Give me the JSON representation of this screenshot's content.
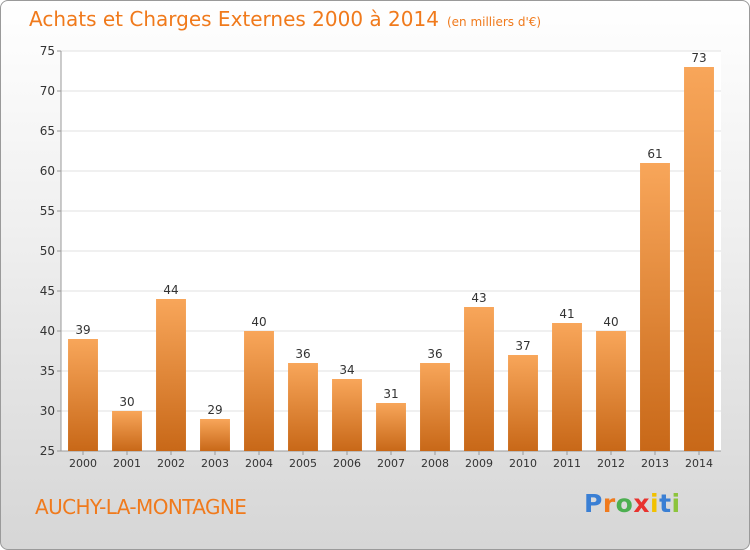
{
  "title": "Achats et Charges Externes 2000 à 2014",
  "subtitle": "(en milliers d'€)",
  "commune": "AUCHY-LA-MONTAGNE",
  "brand": {
    "text": "Proxiti",
    "letter_colors": [
      "#3a7fd4",
      "#f07a1c",
      "#4caf50",
      "#e8322e",
      "#f2c100",
      "#3a7fd4",
      "#8cc43c"
    ]
  },
  "colors": {
    "accent": "#f07a1c",
    "bar_light": "#f8a65a",
    "bar_dark": "#c86818",
    "grid": "#e2e2e2",
    "axis": "#999999",
    "text": "#333333"
  },
  "chart_data": {
    "type": "bar",
    "categories": [
      "2000",
      "2001",
      "2002",
      "2003",
      "2004",
      "2005",
      "2006",
      "2007",
      "2008",
      "2009",
      "2010",
      "2011",
      "2012",
      "2013",
      "2014"
    ],
    "values": [
      39,
      30,
      44,
      29,
      40,
      36,
      34,
      31,
      36,
      43,
      37,
      41,
      40,
      61,
      73
    ],
    "ylim": [
      25,
      75
    ],
    "yticks": [
      25,
      30,
      35,
      40,
      45,
      50,
      55,
      60,
      65,
      70,
      75
    ],
    "grid": true,
    "legend": "none"
  }
}
